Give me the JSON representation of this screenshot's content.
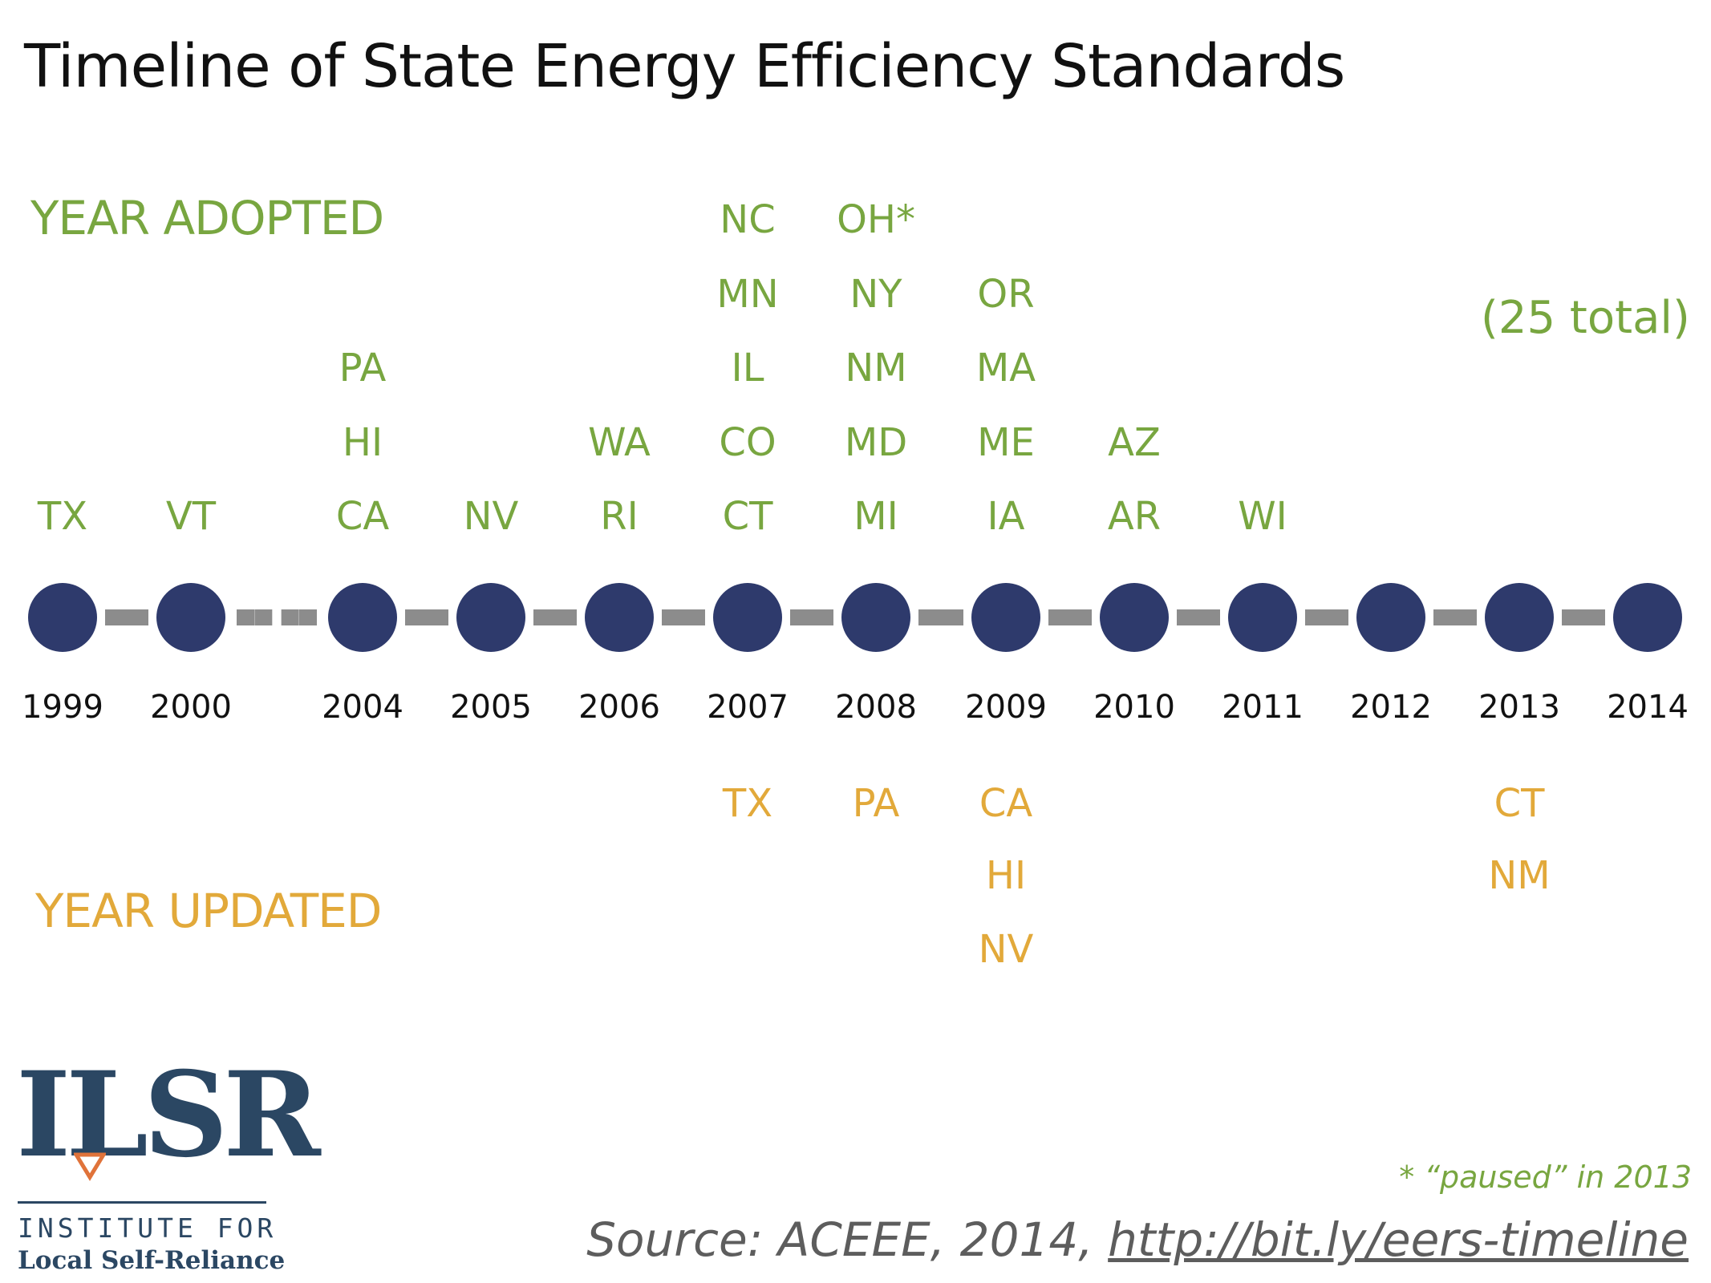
{
  "title": "Timeline of State Energy Efficiency Standards",
  "adopted_label": "YEAR ADOPTED",
  "updated_label": "YEAR UPDATED",
  "total_note": "(25 total)",
  "footnote": "* “paused” in 2013",
  "source_prefix": "Source: ACEEE, 2014, ",
  "source_link": "http://bit.ly/eers-timeline",
  "logo": {
    "mark": "ILSR",
    "line1": "INSTITUTE FOR",
    "line2": "Local Self-Reliance"
  },
  "colors": {
    "adopted": "#78a640",
    "updated": "#e2a93a",
    "node": "#2e3a6c",
    "connector": "#8c8c8c",
    "logo": "#2b4763",
    "logo_accent": "#e0733a"
  },
  "timeline": [
    {
      "year": "1999",
      "adopted": [
        "TX"
      ],
      "updated": []
    },
    {
      "year": "2000",
      "adopted": [
        "VT"
      ],
      "updated": []
    },
    {
      "year": "2004",
      "adopted": [
        "PA",
        "HI",
        "CA"
      ],
      "updated": []
    },
    {
      "year": "2005",
      "adopted": [
        "NV"
      ],
      "updated": []
    },
    {
      "year": "2006",
      "adopted": [
        "WA",
        "RI"
      ],
      "updated": []
    },
    {
      "year": "2007",
      "adopted": [
        "NC",
        "MN",
        "IL",
        "CO",
        "CT"
      ],
      "updated": [
        "TX"
      ]
    },
    {
      "year": "2008",
      "adopted": [
        "OH*",
        "NY",
        "NM",
        "MD",
        "MI"
      ],
      "updated": [
        "PA"
      ]
    },
    {
      "year": "2009",
      "adopted": [
        "OR",
        "MA",
        "ME",
        "IA"
      ],
      "updated": [
        "CA",
        "HI",
        "NV"
      ]
    },
    {
      "year": "2010",
      "adopted": [
        "AZ",
        "AR"
      ],
      "updated": []
    },
    {
      "year": "2011",
      "adopted": [
        "WI"
      ],
      "updated": []
    },
    {
      "year": "2012",
      "adopted": [],
      "updated": []
    },
    {
      "year": "2013",
      "adopted": [],
      "updated": [
        "CT",
        "NM"
      ]
    },
    {
      "year": "2014",
      "adopted": [],
      "updated": []
    }
  ]
}
